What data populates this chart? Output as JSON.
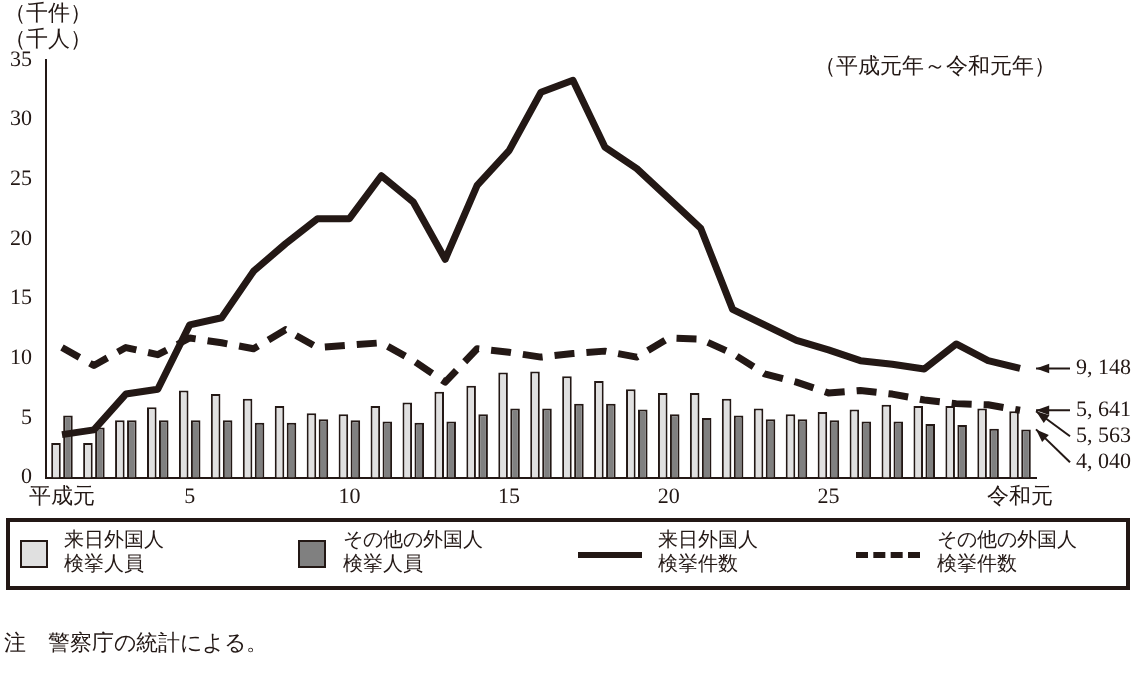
{
  "chart_data": {
    "type": "bar",
    "subtitle": "（平成元年～令和元年）",
    "ylabel": "（千件）（千人）",
    "categories": [
      "平成元",
      null,
      null,
      null,
      "5",
      null,
      null,
      null,
      null,
      "10",
      null,
      null,
      null,
      null,
      "15",
      null,
      null,
      null,
      null,
      "20",
      null,
      null,
      null,
      null,
      "25",
      null,
      null,
      null,
      null,
      null,
      "令和元"
    ],
    "series": [
      {
        "name": "来日外国人検挙人員",
        "color": "#e0e0e0",
        "values": [
          2.9,
          2.9,
          4.8,
          5.9,
          7.3,
          7.0,
          6.6,
          6.0,
          5.4,
          5.3,
          6.0,
          6.3,
          7.2,
          7.7,
          8.8,
          8.9,
          8.5,
          8.1,
          7.4,
          7.1,
          7.1,
          6.6,
          5.8,
          5.3,
          5.5,
          5.7,
          6.1,
          6.0,
          6.0,
          5.8,
          5.563
        ]
      },
      {
        "name": "その他の外国人検挙人員",
        "color": "#808080",
        "values": [
          5.2,
          4.2,
          4.8,
          4.8,
          4.8,
          4.8,
          4.6,
          4.6,
          4.9,
          4.8,
          4.7,
          4.6,
          4.7,
          5.3,
          5.8,
          5.8,
          6.2,
          6.2,
          5.7,
          5.3,
          5.0,
          5.2,
          4.9,
          4.9,
          4.8,
          4.7,
          4.7,
          4.5,
          4.4,
          4.1,
          4.04
        ]
      },
      {
        "name": "来日外国人検挙件数",
        "type": "line",
        "color": "#231815",
        "line_style": "solid",
        "values": [
          3.6,
          4.0,
          7.0,
          7.4,
          12.8,
          13.4,
          17.3,
          19.6,
          21.7,
          21.7,
          25.3,
          23.1,
          18.3,
          24.5,
          27.4,
          32.3,
          33.3,
          27.7,
          25.9,
          23.4,
          20.9,
          14.1,
          12.8,
          11.5,
          10.7,
          9.8,
          9.5,
          9.1,
          11.2,
          9.8,
          9.148
        ]
      },
      {
        "name": "その他の外国人検挙件数",
        "type": "line",
        "color": "#231815",
        "line_style": "dashed",
        "values": [
          10.9,
          9.4,
          10.9,
          10.3,
          11.7,
          11.3,
          10.8,
          12.4,
          10.9,
          11.1,
          11.3,
          9.8,
          8.0,
          10.8,
          10.5,
          10.1,
          10.4,
          10.6,
          10.1,
          11.7,
          11.6,
          10.4,
          8.7,
          8.0,
          7.1,
          7.3,
          7.0,
          6.5,
          6.2,
          6.1,
          5.641
        ]
      }
    ],
    "ylim": [
      0,
      35
    ],
    "yticks": [
      0,
      5,
      10,
      15,
      20,
      25,
      30,
      35
    ],
    "grid": false,
    "legend": "bottom",
    "marker": "none",
    "annotations": [
      {
        "text": "9, 148",
        "x": "令和元",
        "y": 9.148
      },
      {
        "text": "5, 641",
        "x": "令和元",
        "y": 5.641
      },
      {
        "text": "5, 563",
        "x": "令和元",
        "y": 5.563
      },
      {
        "text": "4, 040",
        "x": "令和元",
        "y": 4.04
      },
      "注　警察庁の統計による。"
    ]
  }
}
